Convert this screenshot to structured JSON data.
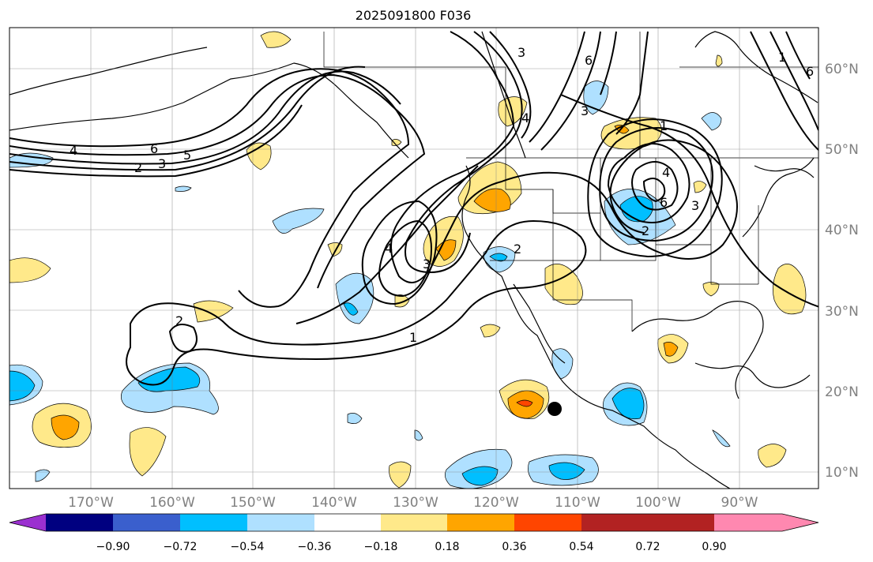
{
  "title": "2025091800 F036",
  "map": {
    "longitude_labels": [
      "170°W",
      "160°W",
      "150°W",
      "140°W",
      "130°W",
      "120°W",
      "110°W",
      "100°W",
      "90°W"
    ],
    "latitude_labels": [
      "60°N",
      "50°N",
      "40°N",
      "30°N",
      "20°N",
      "10°N"
    ],
    "contour_labels": [
      "4",
      "6",
      "5",
      "2",
      "3",
      "2",
      "4",
      "3",
      "2",
      "1",
      "3",
      "6",
      "3",
      "4",
      "6",
      "1",
      "4",
      "6",
      "3",
      "2",
      "1"
    ],
    "marker": "storm-center-dot"
  },
  "colorbar": {
    "tick_labels": [
      "−0.90",
      "−0.72",
      "−0.54",
      "−0.36",
      "−0.18",
      "0.18",
      "0.36",
      "0.54",
      "0.72",
      "0.90"
    ],
    "colors": [
      "#9b30d0",
      "#000080",
      "#3a5fcd",
      "#00bfff",
      "#afe0ff",
      "#ffffff",
      "#ffe98a",
      "#ffa500",
      "#ff4500",
      "#b22222",
      "#ff88b0"
    ]
  }
}
